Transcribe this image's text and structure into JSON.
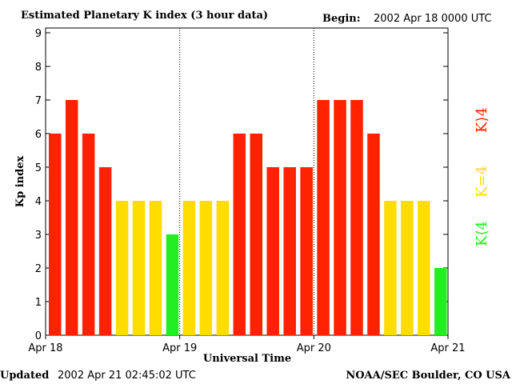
{
  "chart_data": {
    "type": "bar",
    "title": "Estimated Planetary K index (3 hour data)",
    "begin_label": "Begin:",
    "begin_value": "2002 Apr 18 0000 UTC",
    "xlabel": "Universal Time",
    "ylabel": "Kp index",
    "ylim": [
      0,
      9
    ],
    "yticks": [
      "0",
      "1",
      "2",
      "3",
      "4",
      "5",
      "6",
      "7",
      "8",
      "9"
    ],
    "day_labels": [
      "Apr 18",
      "Apr 19",
      "Apr 20",
      "Apr 21"
    ],
    "values": [
      6,
      7,
      6,
      5,
      4,
      4,
      4,
      3,
      4,
      4,
      4,
      6,
      6,
      5,
      5,
      5,
      7,
      7,
      7,
      6,
      4,
      4,
      4,
      2
    ],
    "colors": {
      "high": "#ff2200",
      "mid": "#ffdd00",
      "low": "#22ee22"
    },
    "legend": {
      "high": "K⟩4",
      "mid": "K=4",
      "low": "K⟨4"
    }
  },
  "footer": {
    "updated_label": "Updated",
    "updated_value": "2002 Apr 21 02:45:02 UTC",
    "credit": "NOAA/SEC Boulder, CO USA"
  }
}
